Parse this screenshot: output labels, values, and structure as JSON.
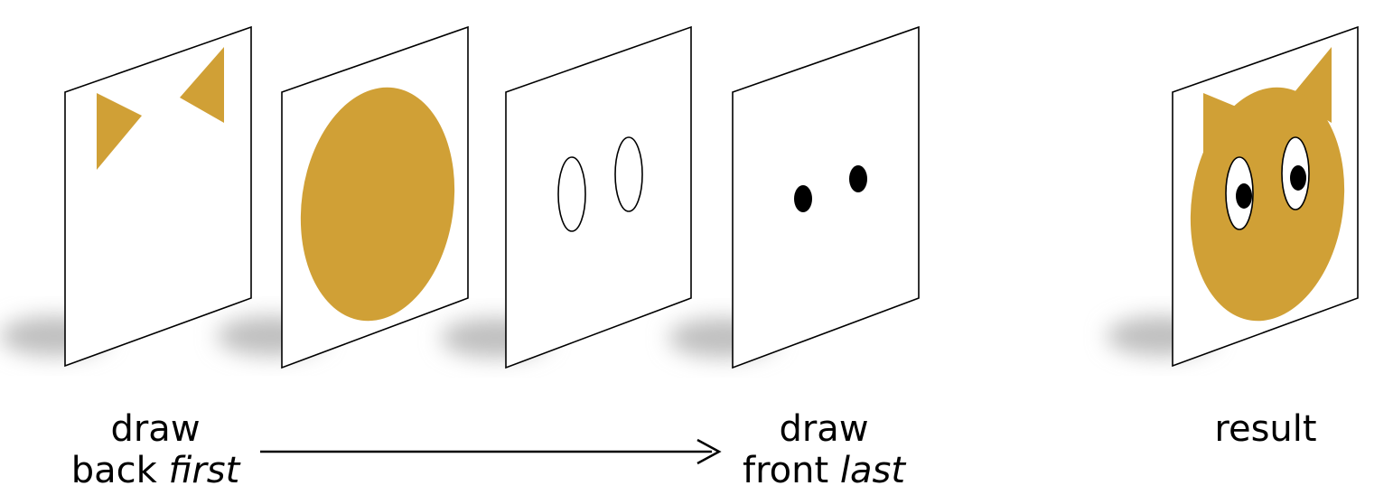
{
  "colors": {
    "fill": "#d0a036",
    "outline": "#000000",
    "panel": "#ffffff",
    "shadow": "#bfbfbf"
  },
  "layers": [
    {
      "name": "ears-layer",
      "content": "two ear triangles"
    },
    {
      "name": "head-layer",
      "content": "head ellipse"
    },
    {
      "name": "eye-outline-layer",
      "content": "two eye outlines"
    },
    {
      "name": "pupil-layer",
      "content": "two pupils"
    },
    {
      "name": "result-layer",
      "content": "composited cat"
    }
  ],
  "labels": {
    "first": {
      "line1": "draw",
      "line2_plain": "back ",
      "line2_italic": "first"
    },
    "last": {
      "line1": "draw",
      "line2_plain": "front ",
      "line2_italic": "last"
    },
    "result": "result"
  }
}
